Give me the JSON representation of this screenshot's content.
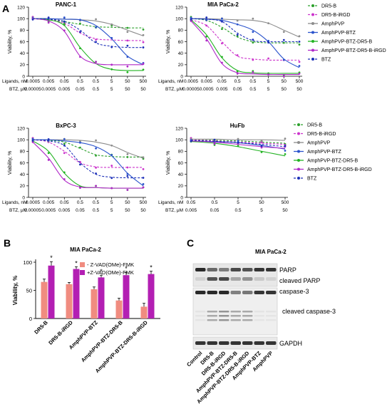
{
  "panel_labels": {
    "a": "A",
    "b": "B",
    "c": "C"
  },
  "colors": {
    "DR5-B": "#2ca02c",
    "DR5-B-iRGD": "#cc33cc",
    "AmphPVP": "#8c8c8c",
    "AmphPVP-BTZ": "#2a53cc",
    "AmphPVP-BTZ-DR5-B": "#22b322",
    "AmphPVP-BTZ-DR5-B-iRGD": "#b028c8",
    "BTZ": "#1c2fb8",
    "bar_without": "#f08c80",
    "bar_with": "#b31fb3"
  },
  "legend_items": [
    {
      "label": "DR5-B",
      "key": "DR5-B",
      "dash": true,
      "marker": "dot"
    },
    {
      "label": "DR5-B-iRGD",
      "key": "DR5-B-iRGD",
      "dash": true,
      "marker": "dot"
    },
    {
      "label": "AmphPVP",
      "key": "AmphPVP",
      "dash": false,
      "marker": "square"
    },
    {
      "label": "AmphPVP-BTZ",
      "key": "AmphPVP-BTZ",
      "dash": false,
      "marker": "square"
    },
    {
      "label": "AmphPVP-BTZ-DR5-B",
      "key": "AmphPVP-BTZ-DR5-B",
      "dash": false,
      "marker": "triangle"
    },
    {
      "label": "AmphPVP-BTZ-DR5-B-iRGD",
      "key": "AmphPVP-BTZ-DR5-B-iRGD",
      "dash": false,
      "marker": "triangle"
    },
    {
      "label": "BTZ",
      "key": "BTZ",
      "dash": true,
      "marker": "dot"
    }
  ],
  "panel_a": {
    "row_labels": {
      "ligands": "Ligands, nM",
      "btz": "BTZ, μM"
    },
    "ylabel": "Viability, %",
    "yticks": [
      "0",
      "20",
      "40",
      "60",
      "80",
      "100",
      "120"
    ],
    "plots": [
      {
        "title": "PANC-1",
        "ligands": [
          "0.0005",
          "0.005",
          "0.05",
          "0.5",
          "0.5",
          "5",
          "50",
          "500"
        ],
        "btz": [
          "0.00005",
          "0.0005",
          "0.005",
          "0.05",
          "0.5",
          "5",
          "50",
          "50"
        ],
        "chart_data": {
          "type": "line",
          "x": [
            1,
            2,
            3,
            4,
            5,
            6,
            7,
            8
          ],
          "ylim": [
            0,
            120
          ],
          "series": [
            {
              "name": "DR5-B",
              "values": [
                100,
                98,
                95,
                90,
                86,
                85,
                84,
                84
              ]
            },
            {
              "name": "DR5-B-iRGD",
              "values": [
                100,
                98,
                92,
                75,
                65,
                63,
                62,
                62
              ]
            },
            {
              "name": "AmphPVP",
              "values": [
                100,
                100,
                99,
                98,
                96,
                90,
                80,
                70
              ]
            },
            {
              "name": "AmphPVP-BTZ",
              "values": [
                100,
                100,
                99,
                98,
                88,
                65,
                35,
                20
              ]
            },
            {
              "name": "AmphPVP-BTZ-DR5-B",
              "values": [
                100,
                98,
                88,
                50,
                22,
                12,
                10,
                10
              ]
            },
            {
              "name": "AmphPVP-BTZ-DR5-B-iRGD",
              "values": [
                100,
                96,
                78,
                35,
                22,
                20,
                20,
                20
              ]
            },
            {
              "name": "BTZ",
              "values": [
                100,
                99,
                95,
                80,
                58,
                52,
                50,
                50
              ]
            }
          ]
        }
      },
      {
        "title": "MIA PaCa-2",
        "ligands": [
          "0.0005",
          "0.005",
          "0.05",
          "0.5",
          "0.5",
          "5",
          "50",
          "500"
        ],
        "btz": [
          "0.00005",
          "0.0005",
          "0.005",
          "0.05",
          "0.5",
          "5",
          "50",
          "50"
        ],
        "chart_data": {
          "type": "line",
          "x": [
            1,
            2,
            3,
            4,
            5,
            6,
            7,
            8
          ],
          "ylim": [
            0,
            120
          ],
          "series": [
            {
              "name": "DR5-B",
              "values": [
                100,
                97,
                85,
                68,
                60,
                58,
                58,
                58
              ]
            },
            {
              "name": "DR5-B-iRGD",
              "values": [
                98,
                88,
                60,
                35,
                30,
                28,
                28,
                28
              ]
            },
            {
              "name": "AmphPVP",
              "values": [
                100,
                100,
                99,
                98,
                97,
                92,
                80,
                68
              ]
            },
            {
              "name": "AmphPVP-BTZ",
              "values": [
                100,
                99,
                97,
                90,
                80,
                60,
                30,
                15
              ]
            },
            {
              "name": "AmphPVP-BTZ-DR5-B",
              "values": [
                98,
                72,
                32,
                10,
                6,
                5,
                5,
                5
              ]
            },
            {
              "name": "AmphPVP-BTZ-DR5-B-iRGD",
              "values": [
                96,
                65,
                22,
                6,
                4,
                3,
                3,
                3
              ]
            },
            {
              "name": "BTZ",
              "values": [
                100,
                99,
                95,
                75,
                62,
                60,
                60,
                60
              ]
            }
          ]
        }
      },
      {
        "title": "BxPC-3",
        "ligands": [
          "0.0005",
          "0.005",
          "0.05",
          "0.5",
          "0.5",
          "5",
          "50",
          "500"
        ],
        "btz": [
          "0.00005",
          "0.0005",
          "0.005",
          "0.05",
          "0.5",
          "5",
          "50",
          "50"
        ],
        "chart_data": {
          "type": "line",
          "x": [
            1,
            2,
            3,
            4,
            5,
            6,
            7,
            8
          ],
          "ylim": [
            0,
            120
          ],
          "series": [
            {
              "name": "DR5-B",
              "values": [
                100,
                99,
                96,
                85,
                74,
                71,
                70,
                70
              ]
            },
            {
              "name": "DR5-B-iRGD",
              "values": [
                100,
                96,
                80,
                60,
                53,
                52,
                52,
                52
              ]
            },
            {
              "name": "AmphPVP",
              "values": [
                100,
                100,
                100,
                99,
                96,
                90,
                78,
                68
              ]
            },
            {
              "name": "AmphPVP-BTZ",
              "values": [
                100,
                100,
                98,
                95,
                88,
                72,
                42,
                20
              ]
            },
            {
              "name": "AmphPVP-BTZ-DR5-B",
              "values": [
                98,
                80,
                42,
                20,
                17,
                16,
                16,
                16
              ]
            },
            {
              "name": "AmphPVP-BTZ-DR5-B-iRGD",
              "values": [
                96,
                68,
                30,
                18,
                17,
                16,
                16,
                16
              ]
            },
            {
              "name": "BTZ",
              "values": [
                100,
                98,
                90,
                60,
                40,
                35,
                34,
                34
              ]
            }
          ]
        }
      },
      {
        "title": "HuFb",
        "ligands": [
          "0.05",
          "0.5",
          "5",
          "50",
          "500"
        ],
        "btz": [
          "0.005",
          "0.05",
          "0.5",
          "5",
          "50"
        ],
        "chart_data": {
          "type": "line",
          "x": [
            1,
            2,
            3,
            4,
            5
          ],
          "ylim": [
            0,
            120
          ],
          "series": [
            {
              "name": "DR5-B",
              "values": [
                100,
                99,
                98,
                96,
                94
              ]
            },
            {
              "name": "DR5-B-iRGD",
              "values": [
                100,
                98,
                96,
                94,
                92
              ]
            },
            {
              "name": "AmphPVP",
              "values": [
                101,
                101,
                100,
                100,
                99
              ]
            },
            {
              "name": "AmphPVP-BTZ",
              "values": [
                98,
                97,
                95,
                90,
                84
              ]
            },
            {
              "name": "AmphPVP-BTZ-DR5-B",
              "values": [
                97,
                94,
                88,
                80,
                72
              ]
            },
            {
              "name": "AmphPVP-BTZ-DR5-B-iRGD",
              "values": [
                98,
                96,
                92,
                88,
                85
              ]
            },
            {
              "name": "BTZ",
              "values": [
                99,
                97,
                95,
                92,
                88
              ]
            }
          ]
        }
      }
    ]
  },
  "panel_b": {
    "title": "MIA PaCa-2",
    "ylabel": "Viability, %",
    "yticks": [
      "0",
      "50",
      "100"
    ],
    "legend": [
      "- Z-VAD(OMe)-FMK",
      "+Z-VAD(OMe)-FMK"
    ],
    "star": "*",
    "chart_data": {
      "type": "bar",
      "categories": [
        "DR5-B",
        "DR5-B-iRGD",
        "AmphPVP-BTZ",
        "AmphPVP-BTZ-DR5-B",
        "AmphPVP-BTZ-DR5-B-iRGD"
      ],
      "ylim": [
        0,
        100
      ],
      "series": [
        {
          "name": "- Z-VAD(OMe)-FMK",
          "values": [
            65,
            61,
            52,
            32,
            21
          ],
          "errors": [
            5,
            3,
            4,
            4,
            6
          ]
        },
        {
          "name": "+Z-VAD(OMe)-FMK",
          "values": [
            94,
            88,
            73,
            77,
            79
          ],
          "errors": [
            7,
            4,
            4,
            5,
            5
          ]
        }
      ]
    }
  },
  "panel_c": {
    "title": "MIA PaCa-2",
    "band_labels": [
      "PARP",
      "cleaved PARP",
      "caspase-3",
      "cleaved caspase-3",
      "GAPDH"
    ],
    "lanes": [
      "Control",
      "DR5-B",
      "DR5-B-iRGD",
      "AmphPVP-BTZ-DR5-B",
      "AmphPVP-BTZ-DR5-B-iRGD",
      "AmphPVP-BTZ",
      "AmphPVP"
    ]
  }
}
